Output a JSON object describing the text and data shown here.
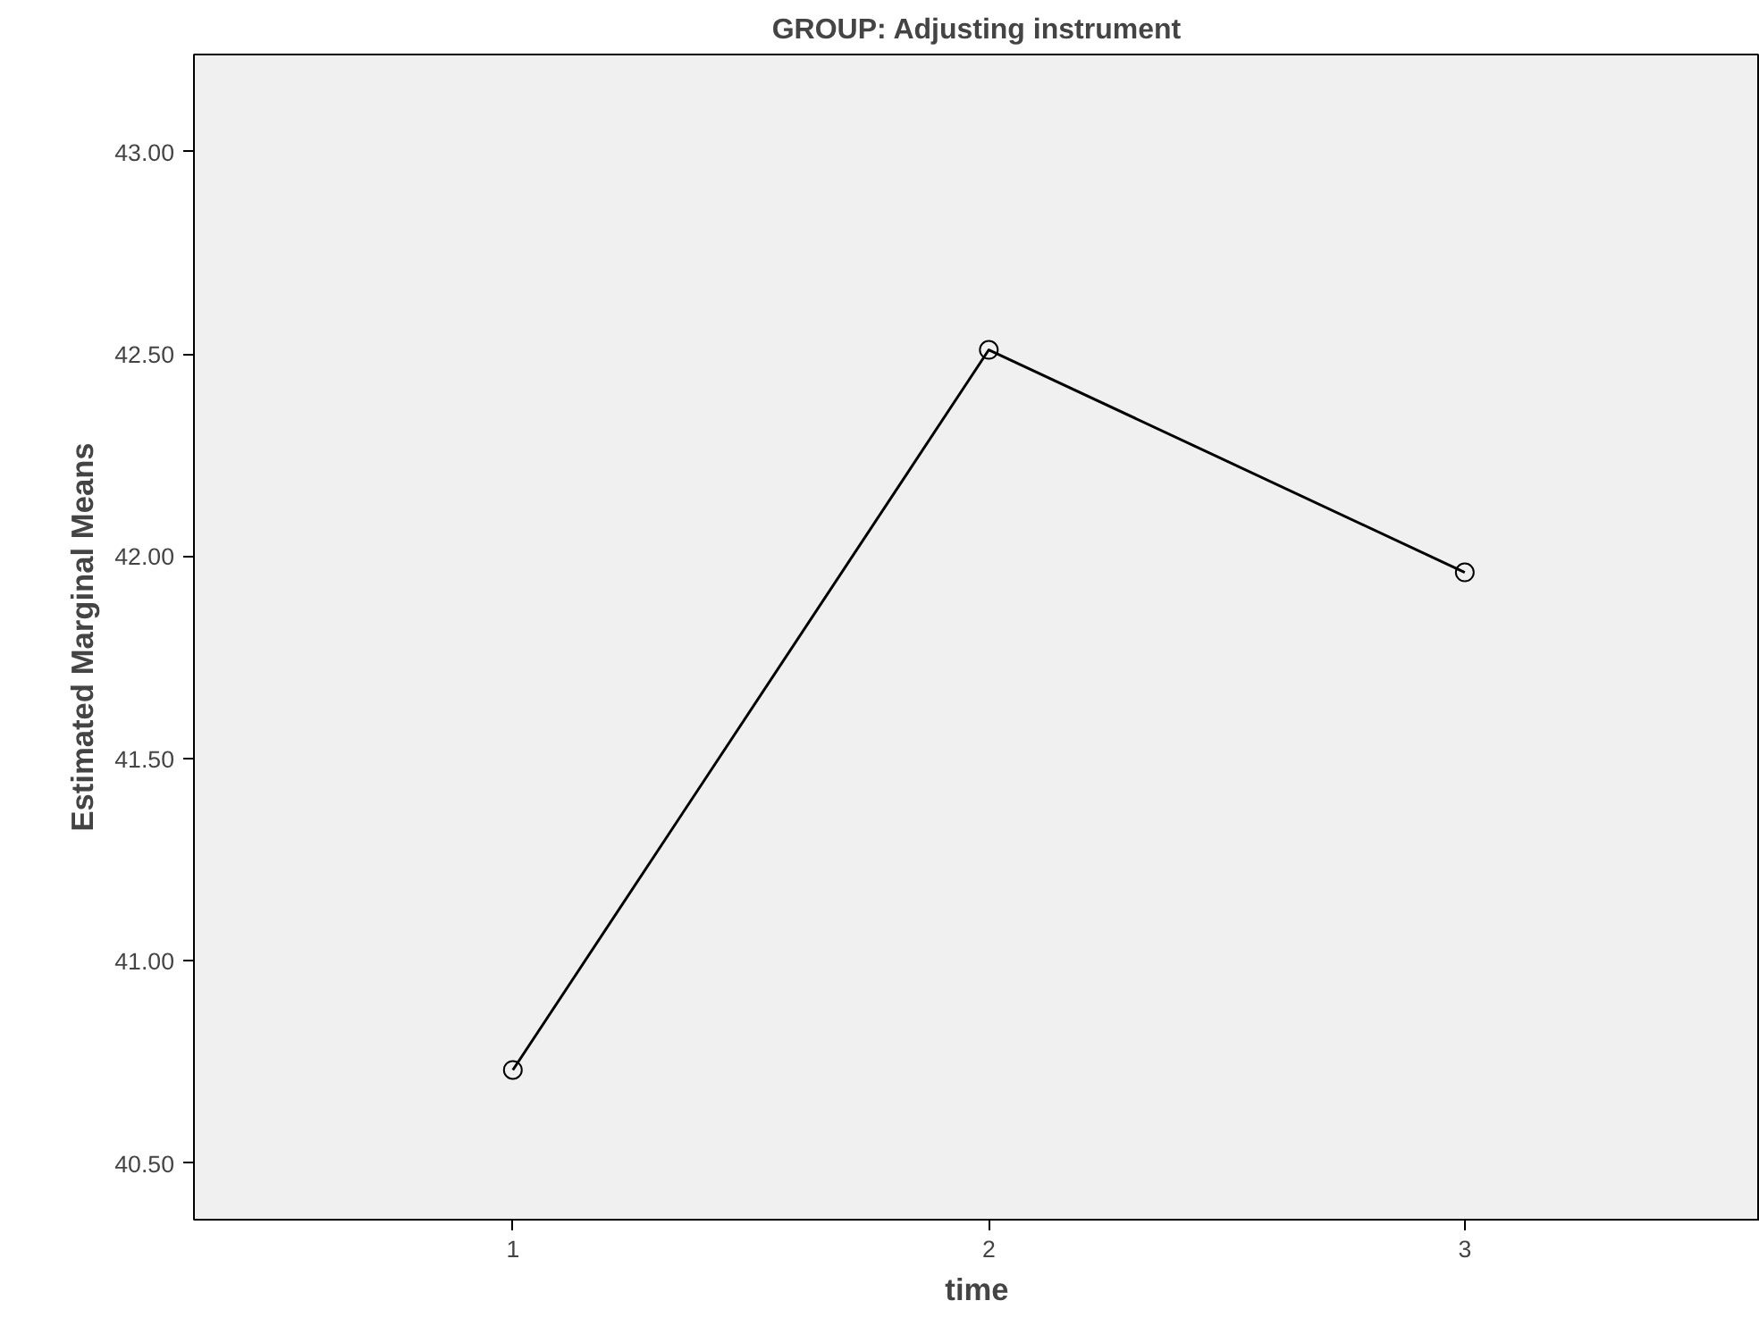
{
  "chart_data": {
    "type": "line",
    "title": "GROUP: Adjusting instrument",
    "xlabel": "time",
    "ylabel": "Estimated Marginal Means",
    "categories": [
      "1",
      "2",
      "3"
    ],
    "series": [
      {
        "color": "#000000",
        "values": [
          40.73,
          42.51,
          41.96
        ]
      }
    ],
    "ylim": [
      40.36,
      43.24
    ],
    "yticks": [
      {
        "value": 40.5,
        "label": "40.50"
      },
      {
        "value": 41,
        "label": "41.00"
      },
      {
        "value": 41.5,
        "label": "41.50"
      },
      {
        "value": 42,
        "label": "42.00"
      },
      {
        "value": 42.5,
        "label": "42.50"
      },
      {
        "value": 43,
        "label": "43.00"
      }
    ],
    "grid": false,
    "marker": "circle",
    "line_style": "solid"
  }
}
